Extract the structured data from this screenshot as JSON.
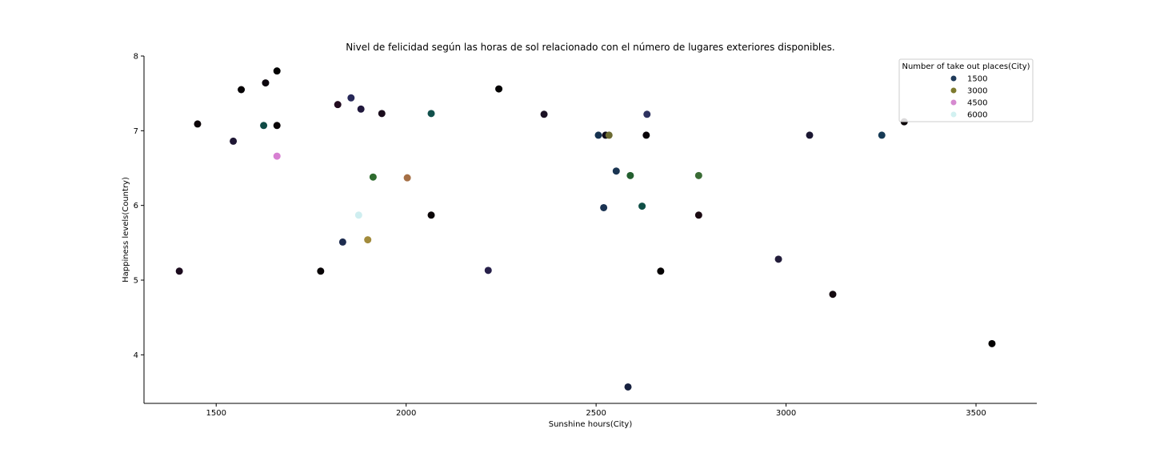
{
  "chart_data": {
    "type": "scatter",
    "title": "Nivel de felicidad según las horas de sol relacionado con el número de lugares exteriores disponibles.",
    "xlabel": "Sunshine hours(City)",
    "ylabel": "Happiness levels(Country)",
    "xlim": [
      1310,
      3660
    ],
    "ylim": [
      3.35,
      8.0
    ],
    "xticks": [
      1500,
      2000,
      2500,
      3000,
      3500
    ],
    "xtick_labels": [
      "1500",
      "2000",
      "2500",
      "3000",
      "3500"
    ],
    "yticks": [
      4,
      5,
      6,
      7,
      8
    ],
    "ytick_labels": [
      "4",
      "5",
      "6",
      "7",
      "8"
    ],
    "grid": false,
    "legend": {
      "title": "Number of take out places(City)",
      "placement": "top-right",
      "entries": [
        {
          "label": "1500",
          "color": "#1f3a5a"
        },
        {
          "label": "3000",
          "color": "#7d7a2e"
        },
        {
          "label": "4500",
          "color": "#d68ad0"
        },
        {
          "label": "6000",
          "color": "#d2f1f1"
        }
      ]
    },
    "points": [
      {
        "x": 1403,
        "y": 5.12,
        "color": "#1b0b1e"
      },
      {
        "x": 1451,
        "y": 7.09,
        "color": "#0b0407"
      },
      {
        "x": 1545,
        "y": 6.86,
        "color": "#1f1734"
      },
      {
        "x": 1566,
        "y": 7.55,
        "color": "#060305"
      },
      {
        "x": 1625,
        "y": 7.07,
        "color": "#0f4a45"
      },
      {
        "x": 1630,
        "y": 7.64,
        "color": "#0c060d"
      },
      {
        "x": 1660,
        "y": 7.8,
        "color": "#020101"
      },
      {
        "x": 1660,
        "y": 7.07,
        "color": "#0a0507"
      },
      {
        "x": 1660,
        "y": 6.66,
        "color": "#d77fd2"
      },
      {
        "x": 1775,
        "y": 5.12,
        "color": "#070305"
      },
      {
        "x": 1820,
        "y": 7.35,
        "color": "#220c20"
      },
      {
        "x": 1833,
        "y": 5.51,
        "color": "#1d2c4f"
      },
      {
        "x": 1855,
        "y": 7.44,
        "color": "#272858"
      },
      {
        "x": 1875,
        "y": 5.87,
        "color": "#cfeef0"
      },
      {
        "x": 1881,
        "y": 7.29,
        "color": "#20183c"
      },
      {
        "x": 1899,
        "y": 5.54,
        "color": "#a28b3c"
      },
      {
        "x": 1913,
        "y": 6.38,
        "color": "#2e6b2f"
      },
      {
        "x": 1936,
        "y": 7.23,
        "color": "#1a0c1c"
      },
      {
        "x": 2003,
        "y": 6.37,
        "color": "#a56f45"
      },
      {
        "x": 2066,
        "y": 7.23,
        "color": "#11504b"
      },
      {
        "x": 2066,
        "y": 5.87,
        "color": "#0a0507"
      },
      {
        "x": 2216,
        "y": 5.13,
        "color": "#27204a"
      },
      {
        "x": 2244,
        "y": 7.56,
        "color": "#040203"
      },
      {
        "x": 2363,
        "y": 7.22,
        "color": "#1b1224"
      },
      {
        "x": 2506,
        "y": 6.94,
        "color": "#153250"
      },
      {
        "x": 2520,
        "y": 5.97,
        "color": "#1a3352"
      },
      {
        "x": 2525,
        "y": 6.94,
        "color": "#0d0a1a"
      },
      {
        "x": 2534,
        "y": 6.94,
        "color": "#6b6a31"
      },
      {
        "x": 2553,
        "y": 6.46,
        "color": "#1a3552"
      },
      {
        "x": 2584,
        "y": 3.57,
        "color": "#18213f"
      },
      {
        "x": 2590,
        "y": 6.4,
        "color": "#235f2f"
      },
      {
        "x": 2621,
        "y": 5.99,
        "color": "#0f4f46"
      },
      {
        "x": 2632,
        "y": 6.94,
        "color": "#090408"
      },
      {
        "x": 2634,
        "y": 7.22,
        "color": "#2e3260"
      },
      {
        "x": 2670,
        "y": 5.12,
        "color": "#050203"
      },
      {
        "x": 2770,
        "y": 6.4,
        "color": "#3a6c35"
      },
      {
        "x": 2770,
        "y": 5.87,
        "color": "#1a0a12"
      },
      {
        "x": 2980,
        "y": 5.28,
        "color": "#221c3a"
      },
      {
        "x": 3062,
        "y": 6.94,
        "color": "#1b1732"
      },
      {
        "x": 3123,
        "y": 4.81,
        "color": "#140a10"
      },
      {
        "x": 3252,
        "y": 6.94,
        "color": "#163a55"
      },
      {
        "x": 3311,
        "y": 7.12,
        "color": "#0b0508"
      },
      {
        "x": 3542,
        "y": 4.15,
        "color": "#030202"
      }
    ]
  }
}
